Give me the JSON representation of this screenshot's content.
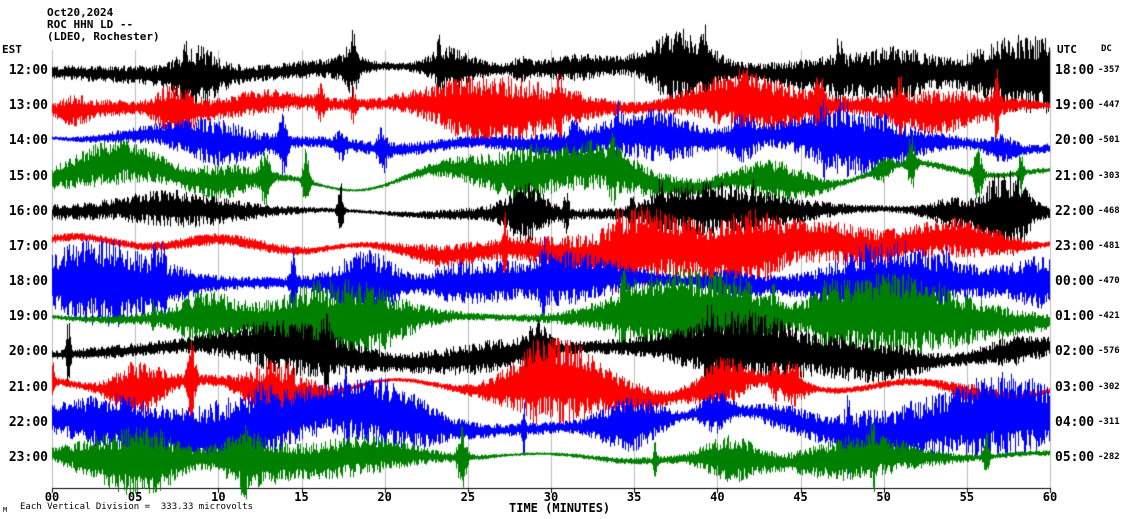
{
  "header": {
    "date": "Oct20,2024",
    "station": "ROC HHN LD --",
    "location": "(LDEO, Rochester)"
  },
  "axes": {
    "left_tz_label": "EST",
    "right_tz_label": "UTC",
    "dc_column_label": "DC",
    "x_axis_label": "TIME (MINUTES)",
    "x_tick_labels": [
      "00",
      "05",
      "10",
      "15",
      "20",
      "25",
      "30",
      "35",
      "40",
      "45",
      "50",
      "55",
      "60"
    ]
  },
  "footer": {
    "scale_note": "Each Vertical Division =  333.33 microvolts",
    "corner_mark": "M"
  },
  "chart_data": {
    "type": "line",
    "subtype": "helicorder-seismogram",
    "title": "ROC HHN LD -- (LDEO, Rochester) Oct20,2024",
    "x_unit": "minutes",
    "x_range": [
      0,
      60
    ],
    "x_tick_interval": 5,
    "rows": 12,
    "vertical_division_microvolts": 333.33,
    "trace_color_cycle": [
      "#000000",
      "#ff0000",
      "#0000ff",
      "#008000"
    ],
    "traces": [
      {
        "est": "12:00",
        "utc": "18:00",
        "dc": -357,
        "color": "#000000"
      },
      {
        "est": "13:00",
        "utc": "19:00",
        "dc": -447,
        "color": "#ff0000"
      },
      {
        "est": "14:00",
        "utc": "20:00",
        "dc": -501,
        "color": "#0000ff"
      },
      {
        "est": "15:00",
        "utc": "21:00",
        "dc": -303,
        "color": "#008000"
      },
      {
        "est": "16:00",
        "utc": "22:00",
        "dc": -468,
        "color": "#000000"
      },
      {
        "est": "17:00",
        "utc": "23:00",
        "dc": -481,
        "color": "#ff0000"
      },
      {
        "est": "18:00",
        "utc": "00:00",
        "dc": -470,
        "color": "#0000ff"
      },
      {
        "est": "19:00",
        "utc": "01:00",
        "dc": -421,
        "color": "#008000"
      },
      {
        "est": "20:00",
        "utc": "02:00",
        "dc": -576,
        "color": "#000000"
      },
      {
        "est": "21:00",
        "utc": "03:00",
        "dc": -302,
        "color": "#ff0000"
      },
      {
        "est": "22:00",
        "utc": "04:00",
        "dc": -311,
        "color": "#0000ff"
      },
      {
        "est": "23:00",
        "utc": "05:00",
        "dc": -282,
        "color": "#008000"
      }
    ]
  },
  "style": {
    "background": "#ffffff",
    "grid_color": "#bbbbbb",
    "axis_color": "#000000",
    "text_color": "#000000"
  }
}
